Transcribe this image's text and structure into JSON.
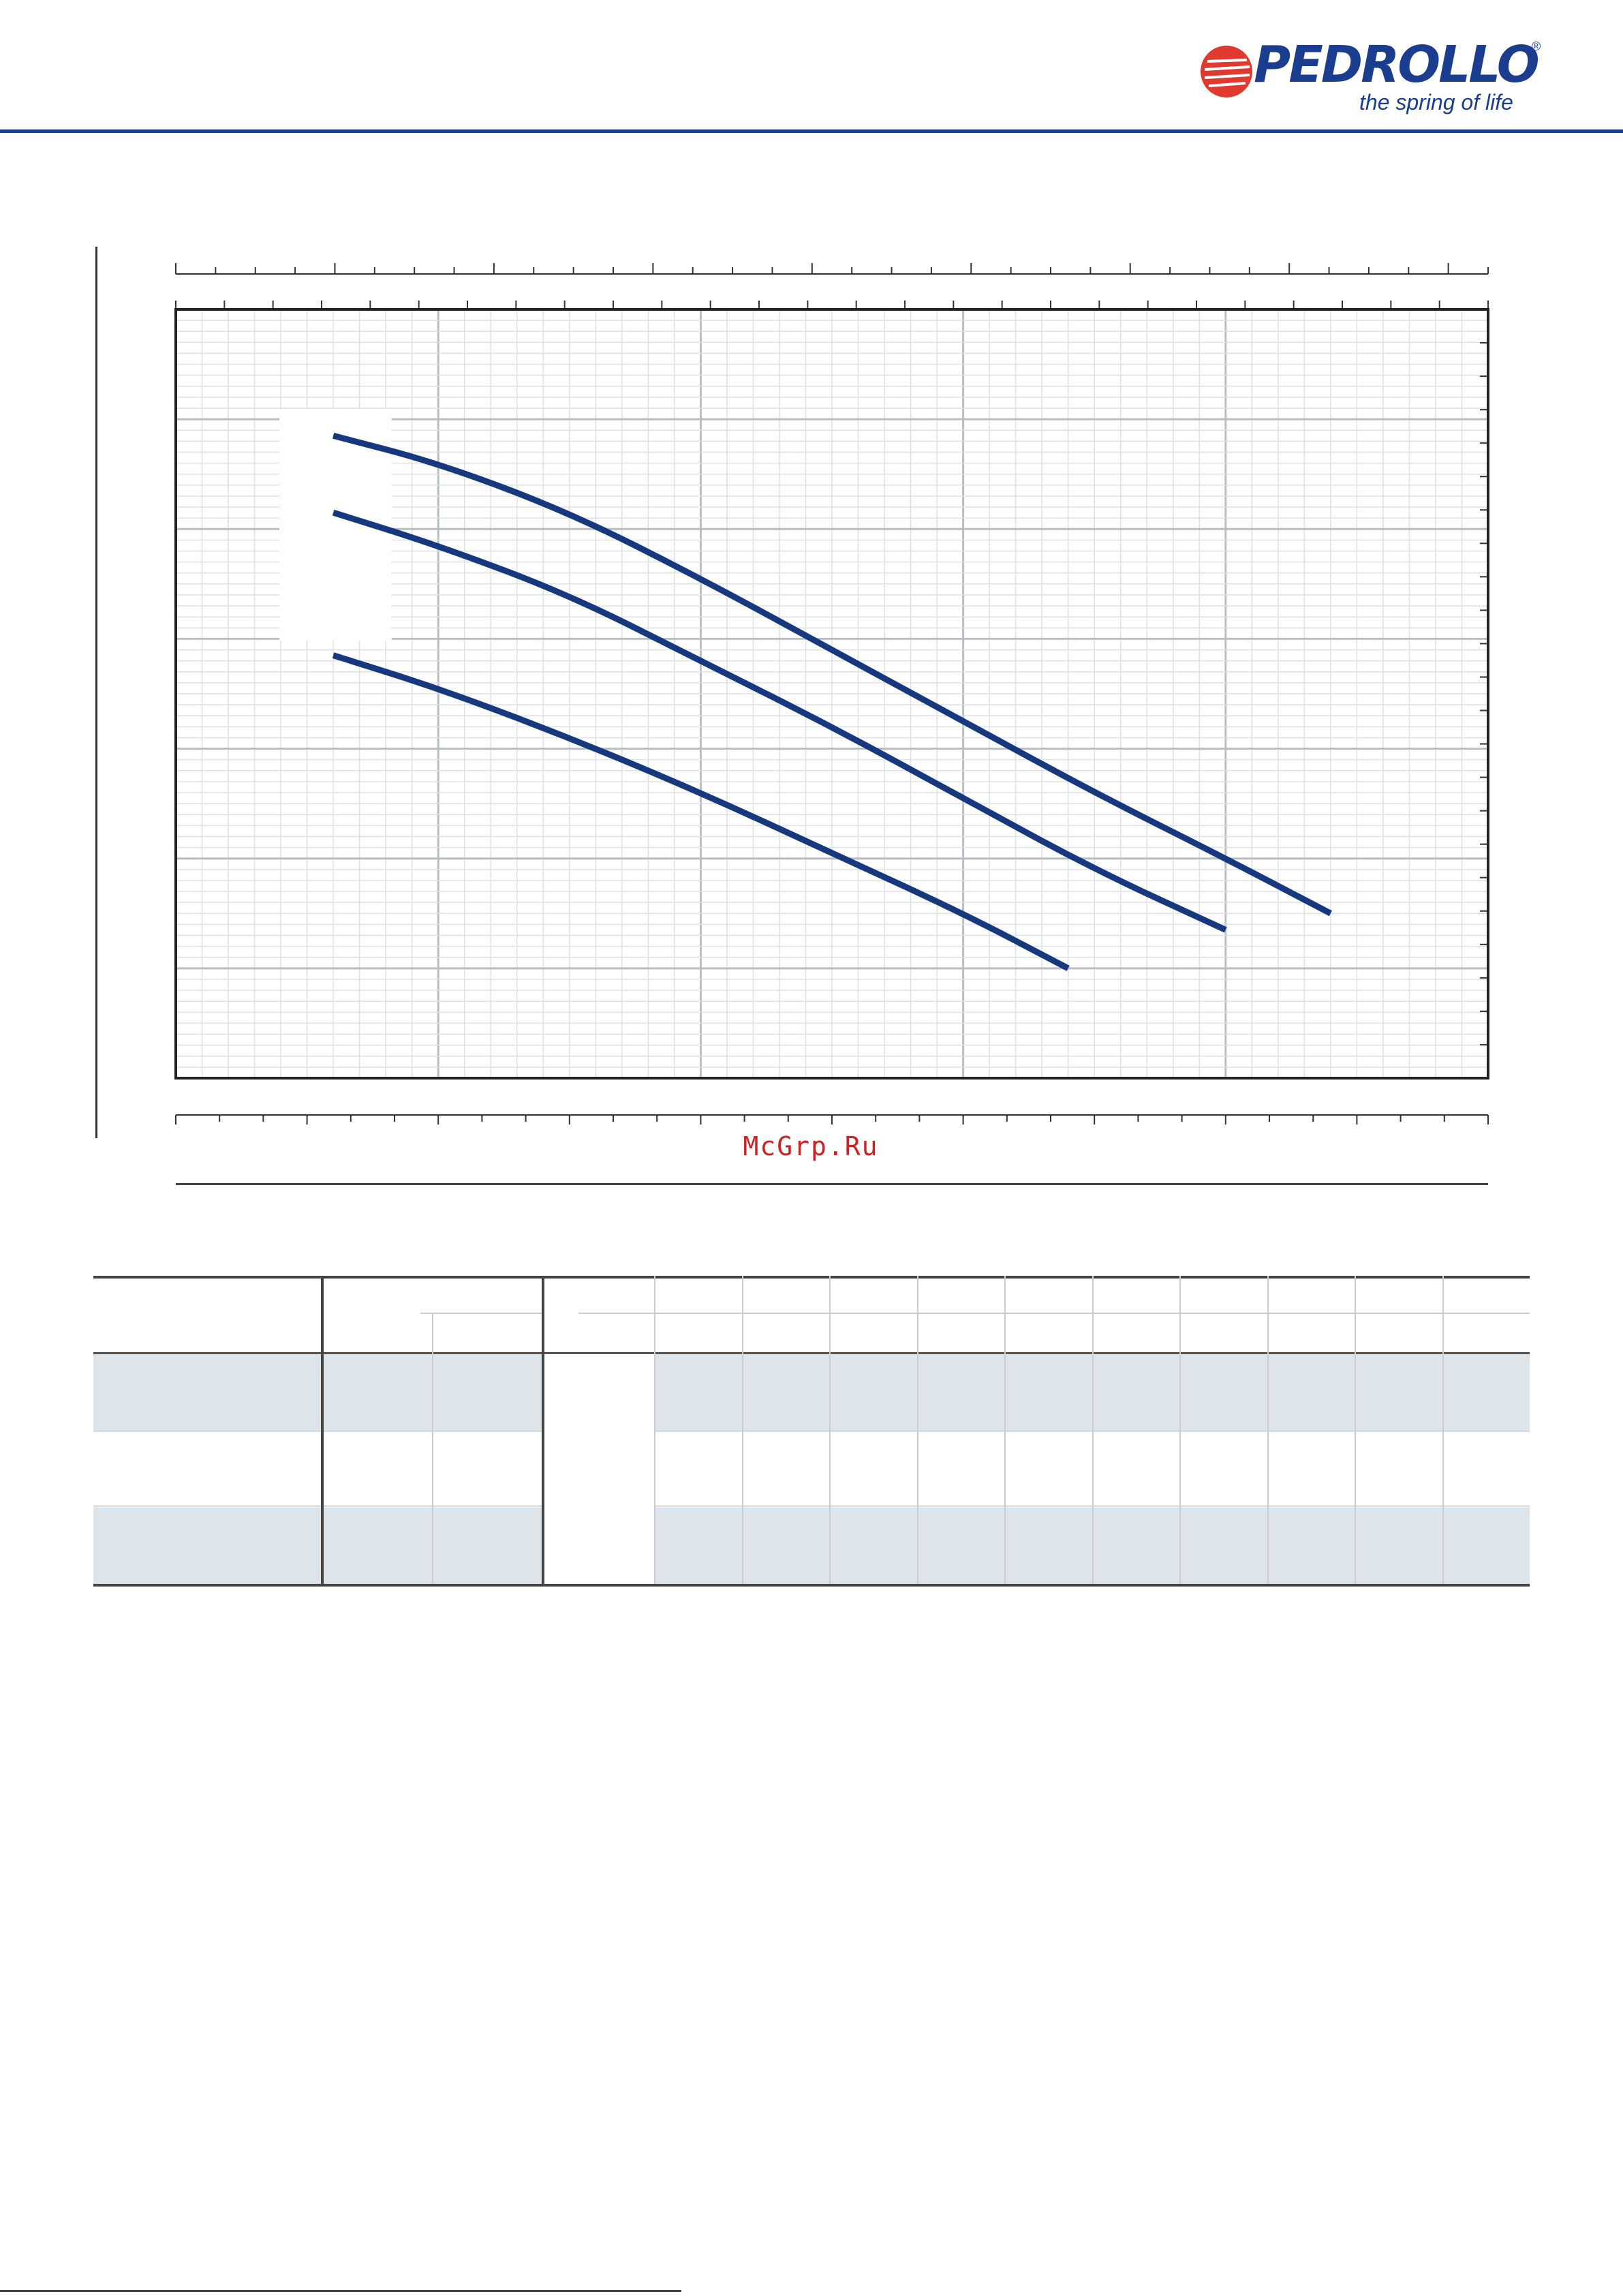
{
  "brand": {
    "name": "PEDROLLO",
    "registered": "®",
    "tagline": "the spring of life",
    "colors": {
      "primary": "#1a3d8f",
      "logo_mark": "#e03a2f"
    }
  },
  "watermark": {
    "text": "McGrp.Ru",
    "color": "#cc2222"
  },
  "chart_data": {
    "type": "line",
    "title": "",
    "xlabel": "",
    "ylabel": "",
    "grid": true,
    "xlim": [
      0,
      50
    ],
    "ylim": [
      0,
      70
    ],
    "series": [
      {
        "points": [
          [
            6,
            58.5
          ],
          [
            10,
            56.0
          ],
          [
            15,
            51.5
          ],
          [
            20,
            45.5
          ],
          [
            25,
            39.0
          ],
          [
            30,
            32.5
          ],
          [
            35,
            26.0
          ],
          [
            40,
            20.0
          ],
          [
            44,
            15.0
          ]
        ]
      },
      {
        "points": [
          [
            6,
            51.5
          ],
          [
            10,
            48.5
          ],
          [
            15,
            44.0
          ],
          [
            20,
            38.0
          ],
          [
            25,
            32.0
          ],
          [
            30,
            25.5
          ],
          [
            35,
            19.0
          ],
          [
            40,
            13.5
          ]
        ]
      },
      {
        "points": [
          [
            6,
            38.5
          ],
          [
            10,
            35.5
          ],
          [
            15,
            31.0
          ],
          [
            20,
            26.0
          ],
          [
            25,
            20.5
          ],
          [
            30,
            15.0
          ],
          [
            34,
            10.0
          ]
        ]
      }
    ],
    "line_color": "#16387f"
  },
  "table": {
    "rows": [
      {
        "shade": true
      },
      {
        "shade": false
      },
      {
        "shade": true
      }
    ],
    "colors": {
      "shade": "#dde5eb",
      "rule": "#444444",
      "grid": "#c9ced3"
    }
  }
}
